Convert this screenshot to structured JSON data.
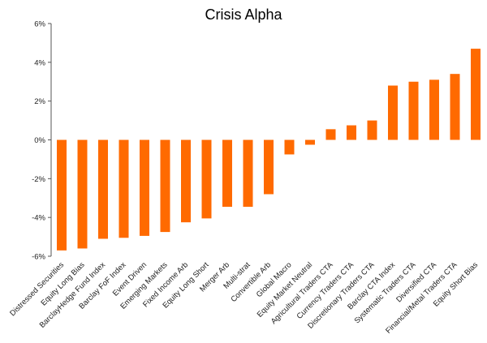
{
  "chart_data": {
    "type": "bar",
    "title": "Crisis Alpha",
    "xlabel": "",
    "ylabel": "",
    "ylim": [
      -6,
      6
    ],
    "yticks": [
      "6%",
      "4%",
      "2%",
      "0%",
      "-2%",
      "-4%",
      "-6%"
    ],
    "ytick_values": [
      6,
      4,
      2,
      0,
      -2,
      -4,
      -6
    ],
    "grid": false,
    "legend": "none",
    "bar_color": "#FF6A00",
    "categories": [
      "Distressed Securities",
      "Equity Long Bias",
      "BarclayHedge Fund Index",
      "Barclay FoF Index",
      "Event Driven",
      "Emerging Markets",
      "Fixed Income Arb",
      "Equity Long Short",
      "Merger Arb",
      "Multi-strat",
      "Convertible Arb",
      "Global Macro",
      "Equity Market Neutral",
      "Agricultural Traders CTA",
      "Currency Traders CTA",
      "Discretionary Traders CTA",
      "Barclay CTA Index",
      "Systematic Traders CTA",
      "Diversified CTA",
      "Financial/Metal Traders CTA",
      "Equity Short Bias"
    ],
    "values": [
      -5.7,
      -5.6,
      -5.1,
      -5.05,
      -4.95,
      -4.75,
      -4.25,
      -4.05,
      -3.45,
      -3.45,
      -2.8,
      -0.75,
      -0.25,
      0.55,
      0.75,
      1.0,
      2.8,
      3.0,
      3.1,
      3.4,
      4.7
    ]
  }
}
